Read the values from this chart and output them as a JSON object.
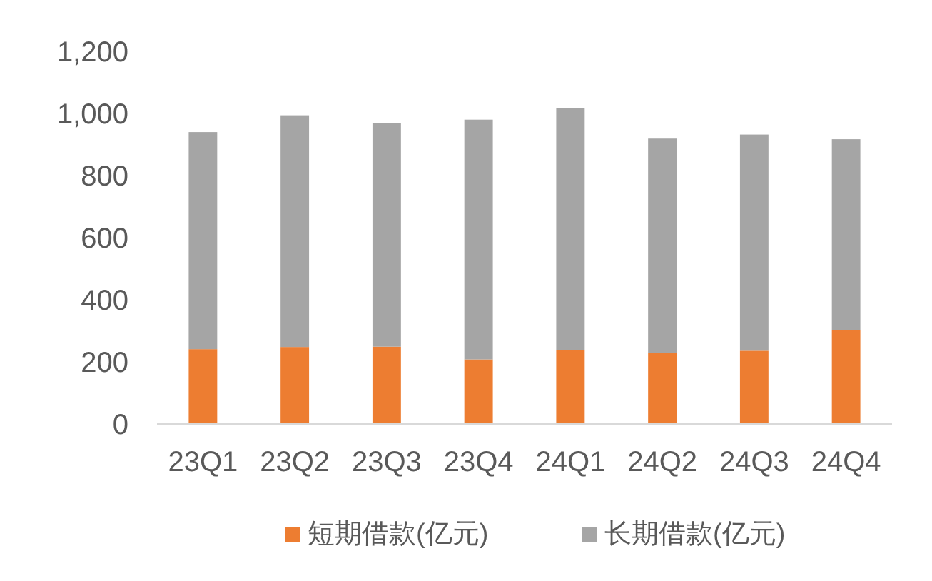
{
  "chart_data": {
    "type": "bar",
    "stacked": true,
    "categories": [
      "23Q1",
      "23Q2",
      "23Q3",
      "23Q4",
      "24Q1",
      "24Q2",
      "24Q3",
      "24Q4"
    ],
    "series": [
      {
        "name": "短期借款(亿元)",
        "color": "#ed7d31",
        "values": [
          241,
          248,
          249,
          208,
          237,
          228,
          236,
          303
        ]
      },
      {
        "name": "长期借款(亿元)",
        "color": "#a5a5a5",
        "values": [
          699,
          746,
          720,
          772,
          781,
          691,
          696,
          614
        ]
      }
    ],
    "ylim": [
      0,
      1200
    ],
    "yticks": [
      0,
      {
        "value": 200,
        "label": "200"
      },
      {
        "value": 400,
        "label": "400"
      },
      {
        "value": 600,
        "label": "600"
      },
      {
        "value": 800,
        "label": "800"
      },
      {
        "value": 1000,
        "label": "1,000"
      },
      {
        "value": 1200,
        "label": "1,200"
      }
    ],
    "grid": false,
    "legend": "bottom"
  }
}
